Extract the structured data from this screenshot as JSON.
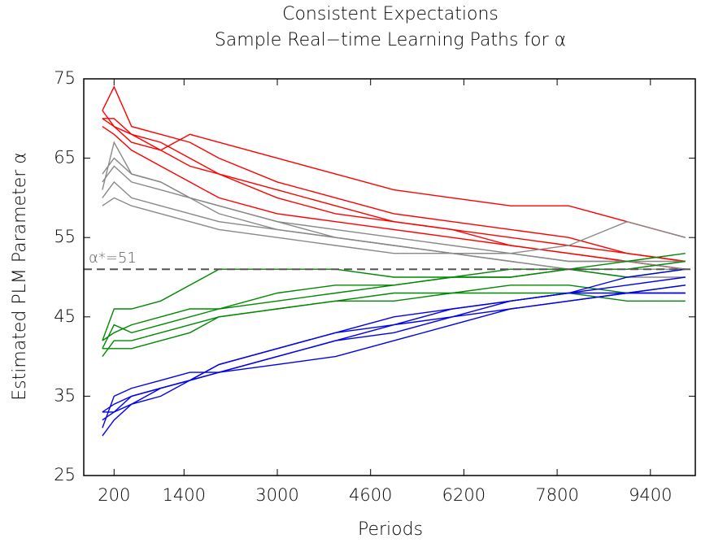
{
  "chart_data": {
    "type": "line",
    "title": "Consistent Expectations",
    "subtitle": "Sample Real−time Learning Paths for α",
    "x_label": "Periods",
    "y_label": "Estimated PLM Parameter α",
    "xlim": [
      -320,
      10170
    ],
    "ylim": [
      25,
      75
    ],
    "xticks": [
      200,
      1400,
      3000,
      4600,
      6200,
      7800,
      9400
    ],
    "yticks": [
      25,
      35,
      45,
      55,
      65,
      75
    ],
    "reference_line": {
      "value": 51,
      "label": "α*=51",
      "color": "#555555"
    },
    "x": [
      0,
      200,
      500,
      1000,
      1500,
      2000,
      3000,
      4000,
      5000,
      6000,
      7000,
      8000,
      9000,
      10000
    ],
    "series": [
      {
        "color": "#ff0000",
        "values": [
          71,
          74,
          69,
          68,
          67,
          65,
          62,
          60,
          58,
          57,
          56,
          55,
          53,
          52
        ]
      },
      {
        "color": "#ff0000",
        "values": [
          70,
          70,
          68,
          66,
          64,
          63,
          61,
          59,
          57,
          56,
          55,
          54,
          53,
          52
        ]
      },
      {
        "color": "#ff0000",
        "values": [
          71,
          69,
          67,
          66,
          68,
          67,
          65,
          63,
          61,
          60,
          59,
          59,
          57,
          55
        ]
      },
      {
        "color": "#ff0000",
        "values": [
          69,
          68,
          66,
          64,
          62,
          60,
          58,
          57,
          56,
          55,
          54,
          53,
          52,
          51
        ]
      },
      {
        "color": "#ff0000",
        "values": [
          70,
          69,
          68,
          67,
          65,
          63,
          60,
          58,
          57,
          56,
          54,
          53,
          52,
          51
        ]
      },
      {
        "color": "#888888",
        "values": [
          61,
          67,
          63,
          62,
          60,
          59,
          57,
          56,
          55,
          54,
          53,
          52,
          52,
          51
        ]
      },
      {
        "color": "#888888",
        "values": [
          62,
          64,
          62,
          61,
          60,
          58,
          56,
          55,
          54,
          53,
          53,
          52,
          52,
          52
        ]
      },
      {
        "color": "#888888",
        "values": [
          60,
          62,
          60,
          59,
          58,
          57,
          56,
          55,
          54,
          53,
          53,
          54,
          57,
          55
        ]
      },
      {
        "color": "#888888",
        "values": [
          63,
          65,
          63,
          62,
          60,
          59,
          57,
          55,
          54,
          53,
          52,
          51,
          51,
          51
        ]
      },
      {
        "color": "#888888",
        "values": [
          59,
          60,
          59,
          58,
          57,
          56,
          55,
          54,
          53,
          53,
          52,
          51,
          50,
          50
        ]
      },
      {
        "color": "#008800",
        "values": [
          42,
          46,
          46,
          47,
          49,
          51,
          51,
          51,
          50,
          50,
          50,
          51,
          51,
          52
        ]
      },
      {
        "color": "#008800",
        "values": [
          41,
          44,
          43,
          44,
          45,
          46,
          47,
          48,
          49,
          50,
          50,
          51,
          52,
          53
        ]
      },
      {
        "color": "#008800",
        "values": [
          40,
          42,
          42,
          43,
          44,
          45,
          46,
          47,
          48,
          48,
          48,
          48,
          47,
          47
        ]
      },
      {
        "color": "#008800",
        "values": [
          42,
          43,
          44,
          45,
          46,
          46,
          48,
          49,
          49,
          50,
          51,
          51,
          50,
          51
        ]
      },
      {
        "color": "#008800",
        "values": [
          41,
          41,
          41,
          42,
          43,
          45,
          46,
          47,
          47,
          48,
          49,
          49,
          48,
          49
        ]
      },
      {
        "color": "#0000ee",
        "values": [
          31,
          35,
          36,
          37,
          38,
          38,
          39,
          40,
          42,
          44,
          46,
          47,
          48,
          49
        ]
      },
      {
        "color": "#0000ee",
        "values": [
          33,
          34,
          35,
          36,
          37,
          39,
          41,
          43,
          45,
          46,
          47,
          48,
          50,
          51
        ]
      },
      {
        "color": "#0000ee",
        "values": [
          30,
          32,
          34,
          36,
          37,
          38,
          40,
          42,
          44,
          46,
          47,
          48,
          48,
          48
        ]
      },
      {
        "color": "#0000ee",
        "values": [
          32,
          33,
          34,
          35,
          37,
          38,
          40,
          42,
          43,
          45,
          47,
          48,
          49,
          50
        ]
      },
      {
        "color": "#0000ee",
        "values": [
          33,
          33,
          35,
          36,
          37,
          39,
          41,
          43,
          44,
          45,
          46,
          47,
          48,
          48
        ]
      }
    ]
  }
}
